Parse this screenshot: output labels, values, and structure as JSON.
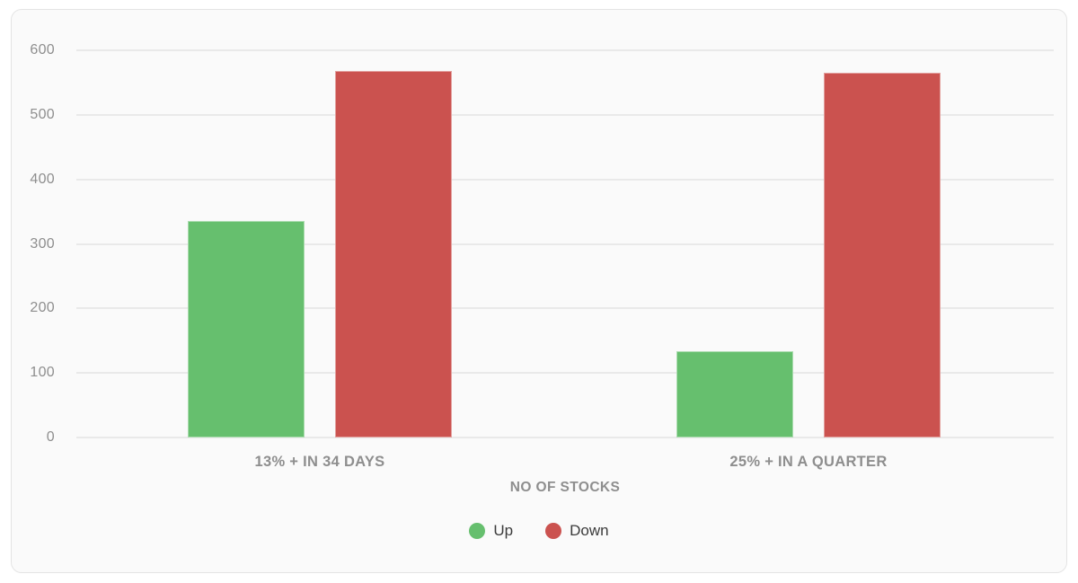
{
  "chart_data": {
    "type": "bar",
    "title": "",
    "categories": [
      "13% + IN 34 DAYS",
      "25% + IN A QUARTER"
    ],
    "series": [
      {
        "name": "Up",
        "color": "#66bf6e",
        "values": [
          335,
          134
        ]
      },
      {
        "name": "Down",
        "color": "#cb524f",
        "values": [
          568,
          565
        ]
      }
    ],
    "xlabel": "NO OF STOCKS",
    "ylabel": "",
    "ylim": [
      0,
      600
    ],
    "yticks": [
      0,
      100,
      200,
      300,
      400,
      500,
      600
    ],
    "grid": true,
    "legend_position": "bottom"
  },
  "colors": {
    "up": "#66bf6e",
    "down": "#cb524f",
    "gridline": "#e9e9e9",
    "tick_text": "#8e8e8e",
    "legend_text": "#3b3b3b",
    "card_background": "#fafafa",
    "card_border": "#e4e4e4",
    "page_background": "#ffffff"
  }
}
